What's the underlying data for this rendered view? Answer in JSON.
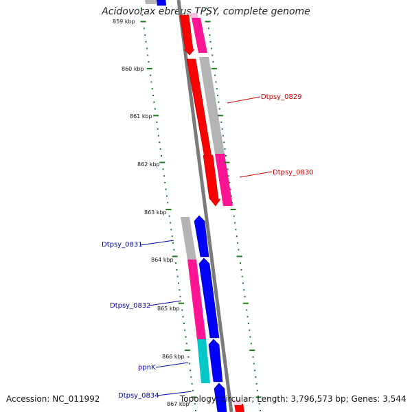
{
  "title": "Acidovorax ebreus TPSY, complete genome",
  "footer": {
    "accession": "Accession: NC_011992",
    "summary": "Topology: circular; Length: 3,796,573 bp; Genes: 3,544"
  },
  "ticks": [
    "859 kbp",
    "860 kbp",
    "861 kbp",
    "862 kbp",
    "863 kbp",
    "864 kbp",
    "865 kbp",
    "866 kbp",
    "867 kbp"
  ],
  "gene_labels": [
    {
      "text": "Dtpsy_0829",
      "color": "#d40000"
    },
    {
      "text": "Dtpsy_0830",
      "color": "#d40000"
    },
    {
      "text": "Dtpsy_0831",
      "color": "#0000b0"
    },
    {
      "text": "Dtpsy_0832",
      "color": "#0000b0"
    },
    {
      "text": "ppnK",
      "color": "#0000b0"
    },
    {
      "text": "Dtpsy_0834",
      "color": "#0000b0"
    }
  ],
  "colors": {
    "backbone": "#808080",
    "forward_cds": "#ff0000",
    "reverse_cds": "#0000ff",
    "pink_feature": "#ff1493",
    "cyan_feature": "#00c8c8",
    "gray_feature": "#b4b4b4",
    "tick_green": "#1a7a1a"
  }
}
